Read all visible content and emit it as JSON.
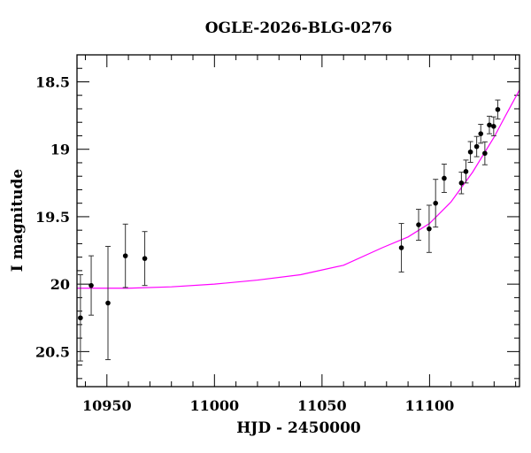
{
  "chart_data": {
    "type": "scatter",
    "title": "OGLE-2026-BLG-0276",
    "xlabel": "HJD - 2450000",
    "ylabel": "I magnitude",
    "xlim": [
      10936.1,
      11141.8
    ],
    "ylim": [
      20.76,
      18.3
    ],
    "y_inverted": true,
    "grid": false,
    "xticks": [
      10950,
      11000,
      11050,
      11100
    ],
    "xtick_labels": [
      "10950",
      "11000",
      "11050",
      "11100"
    ],
    "yticks": [
      18.5,
      19,
      19.5,
      20,
      20.5
    ],
    "ytick_labels": [
      "18.5",
      "19",
      "19.5",
      "20",
      "20.5"
    ],
    "series": [
      {
        "type": "errorbar",
        "color": "#000000",
        "points": [
          {
            "x": 10937.7,
            "y": 20.25,
            "err": 0.32
          },
          {
            "x": 10942.7,
            "y": 20.01,
            "err": 0.22
          },
          {
            "x": 10950.5,
            "y": 20.14,
            "err": 0.42
          },
          {
            "x": 10958.6,
            "y": 19.79,
            "err": 0.235
          },
          {
            "x": 10967.6,
            "y": 19.81,
            "err": 0.2
          },
          {
            "x": 11086.9,
            "y": 19.73,
            "err": 0.18
          },
          {
            "x": 11094.9,
            "y": 19.56,
            "err": 0.115
          },
          {
            "x": 11099.8,
            "y": 19.59,
            "err": 0.175
          },
          {
            "x": 11102.8,
            "y": 19.4,
            "err": 0.177
          },
          {
            "x": 11106.8,
            "y": 19.215,
            "err": 0.105
          },
          {
            "x": 11114.8,
            "y": 19.25,
            "err": 0.08
          },
          {
            "x": 11116.9,
            "y": 19.165,
            "err": 0.085
          },
          {
            "x": 11119.0,
            "y": 19.02,
            "err": 0.077
          },
          {
            "x": 11121.9,
            "y": 18.98,
            "err": 0.075
          },
          {
            "x": 11123.8,
            "y": 18.885,
            "err": 0.07
          },
          {
            "x": 11125.7,
            "y": 19.03,
            "err": 0.085
          },
          {
            "x": 11127.8,
            "y": 18.82,
            "err": 0.065
          },
          {
            "x": 11129.8,
            "y": 18.83,
            "err": 0.07
          },
          {
            "x": 11131.7,
            "y": 18.705,
            "err": 0.07
          }
        ]
      },
      {
        "type": "line",
        "color": "#ff00ff",
        "x": [
          10936.1,
          10960,
          10980,
          11000,
          11020,
          11040,
          11060,
          11078,
          11090,
          11100,
          11110,
          11120,
          11130,
          11135,
          11141.8
        ],
        "y": [
          20.03,
          20.03,
          20.02,
          20.0,
          19.97,
          19.93,
          19.86,
          19.73,
          19.65,
          19.55,
          19.39,
          19.17,
          18.91,
          18.76,
          18.56
        ]
      }
    ]
  }
}
